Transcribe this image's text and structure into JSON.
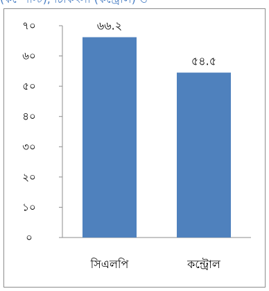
{
  "top_strip": {
    "text": "(কম্পোস্ট), চিকিৎসা (কন্ট্রোল) ও"
  },
  "chart_data": {
    "type": "bar",
    "categories": [
      "সিএলপি",
      "কন্ট্রোল"
    ],
    "values": [
      66.2,
      54.5
    ],
    "value_labels": [
      "৬৬.২",
      "৫৪.৫"
    ],
    "ylim": [
      0,
      70
    ],
    "yticks": [
      0,
      10,
      20,
      30,
      40,
      50,
      60,
      70
    ],
    "ytick_labels": [
      "০",
      "১০",
      "২০",
      "৩০",
      "৪০",
      "৫০",
      "৬০",
      "৭০"
    ],
    "bar_color": "#4f81bd",
    "axis_color": "#8c8c8c",
    "grid": false,
    "legend": "none"
  }
}
